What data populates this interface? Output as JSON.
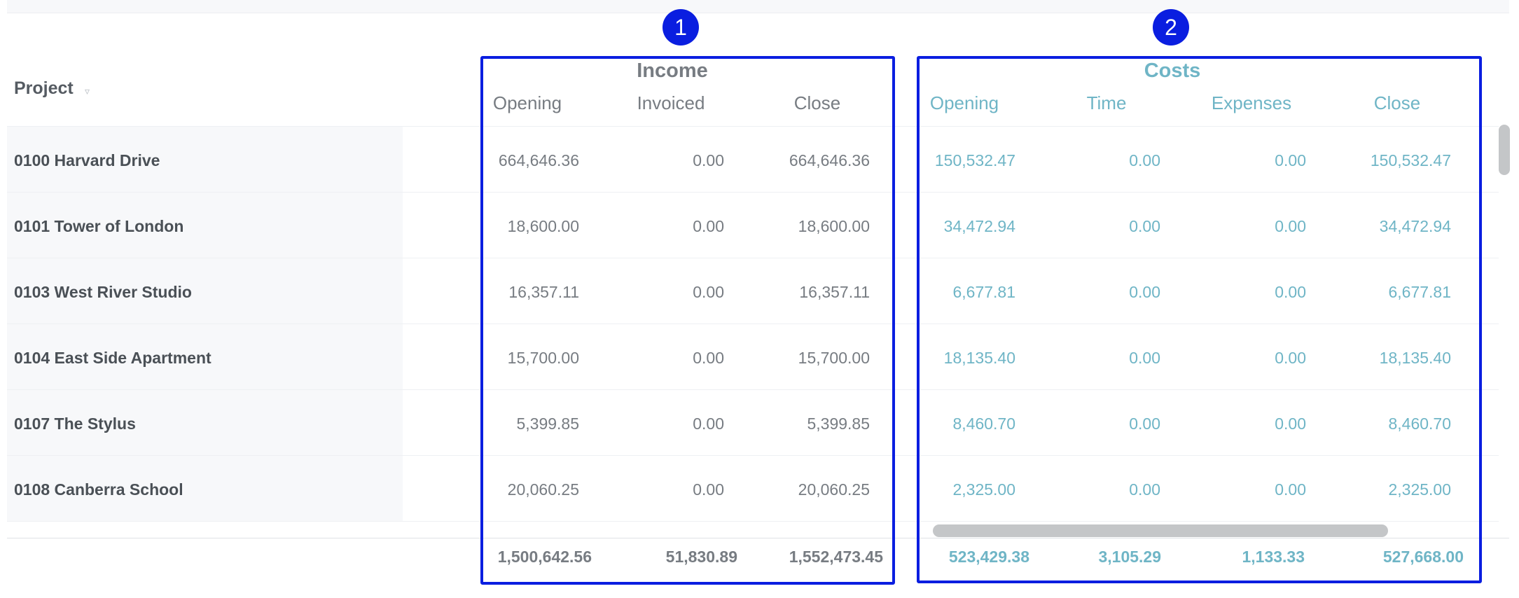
{
  "header": {
    "project_label": "Project",
    "sort_icon": "sort-triangle-icon"
  },
  "income": {
    "title": "Income",
    "columns": [
      "Opening",
      "Invoiced",
      "Close"
    ],
    "totals": [
      "1,500,642.56",
      "51,830.89",
      "1,552,473.45"
    ]
  },
  "costs": {
    "title": "Costs",
    "columns": [
      "Opening",
      "Time",
      "Expenses",
      "Close"
    ],
    "totals": [
      "523,429.38",
      "3,105.29",
      "1,133.33",
      "527,668.00"
    ]
  },
  "rows": [
    {
      "project": "0100 Harvard Drive",
      "income": [
        "664,646.36",
        "0.00",
        "664,646.36"
      ],
      "costs": [
        "150,532.47",
        "0.00",
        "0.00",
        "150,532.47"
      ]
    },
    {
      "project": "0101 Tower of London",
      "income": [
        "18,600.00",
        "0.00",
        "18,600.00"
      ],
      "costs": [
        "34,472.94",
        "0.00",
        "0.00",
        "34,472.94"
      ]
    },
    {
      "project": "0103 West River Studio",
      "income": [
        "16,357.11",
        "0.00",
        "16,357.11"
      ],
      "costs": [
        "6,677.81",
        "0.00",
        "0.00",
        "6,677.81"
      ]
    },
    {
      "project": "0104 East Side Apartment",
      "income": [
        "15,700.00",
        "0.00",
        "15,700.00"
      ],
      "costs": [
        "18,135.40",
        "0.00",
        "0.00",
        "18,135.40"
      ]
    },
    {
      "project": "0107 The Stylus",
      "income": [
        "5,399.85",
        "0.00",
        "5,399.85"
      ],
      "costs": [
        "8,460.70",
        "0.00",
        "0.00",
        "8,460.70"
      ]
    },
    {
      "project": "0108 Canberra School",
      "income": [
        "20,060.25",
        "0.00",
        "20,060.25"
      ],
      "costs": [
        "2,325.00",
        "0.00",
        "0.00",
        "2,325.00"
      ]
    }
  ],
  "annotations": [
    "1",
    "2"
  ],
  "colors": {
    "income_text": "#777c82",
    "costs_text": "#6fb5c6",
    "annotation_box": "#0a1ee0"
  }
}
